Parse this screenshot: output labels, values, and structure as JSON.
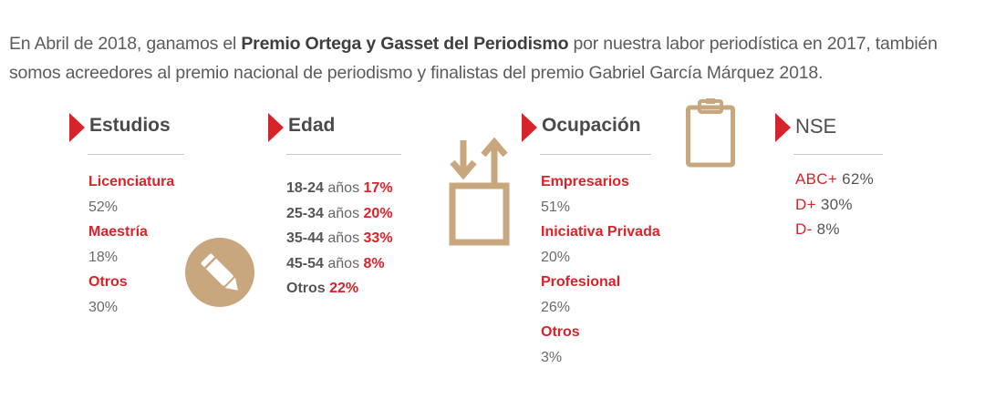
{
  "intro": {
    "part1": "En  Abril de 2018, ganamos el ",
    "bold": "Premio Ortega y Gasset del Periodismo",
    "part2": " por nuestra labor periodística en 2017, también somos acreedores al premio nacional de periodismo y finalistas del premio Gabriel García Márquez 2018."
  },
  "estudios": {
    "title": "Estudios",
    "items": [
      {
        "label": "Licenciatura",
        "value": "52%"
      },
      {
        "label": "Maestría",
        "value": "18%"
      },
      {
        "label": "Otros",
        "value": "30%"
      }
    ]
  },
  "edad": {
    "title": "Edad",
    "rows": [
      {
        "range": "18-24",
        "unit": "años",
        "pct": "17%"
      },
      {
        "range": "25-34",
        "unit": "años",
        "pct": "20%"
      },
      {
        "range": "35-44",
        "unit": "años",
        "pct": "33%"
      },
      {
        "range": "45-54",
        "unit": "años",
        "pct": "8%"
      },
      {
        "range": "Otros",
        "unit": "",
        "pct": "22%"
      }
    ]
  },
  "ocupacion": {
    "title": "Ocupación",
    "items": [
      {
        "label": "Empresarios",
        "value": "51%"
      },
      {
        "label": "Iniciativa Privada",
        "value": "20%"
      },
      {
        "label": "Profesional",
        "value": "26%"
      },
      {
        "label": "Otros",
        "value": "3%"
      }
    ]
  },
  "nse": {
    "title": "NSE",
    "rows": [
      {
        "label": "ABC+",
        "pct": "62%"
      },
      {
        "label": "D+",
        "pct": "30%"
      },
      {
        "label": "D-",
        "pct": "8%"
      }
    ]
  },
  "icons": {
    "accent": "#d8232a",
    "icon_color": "#c8a77f",
    "pencil": "pencil-icon",
    "transfer": "transfer-box-icon",
    "clipboard": "clipboard-icon"
  }
}
